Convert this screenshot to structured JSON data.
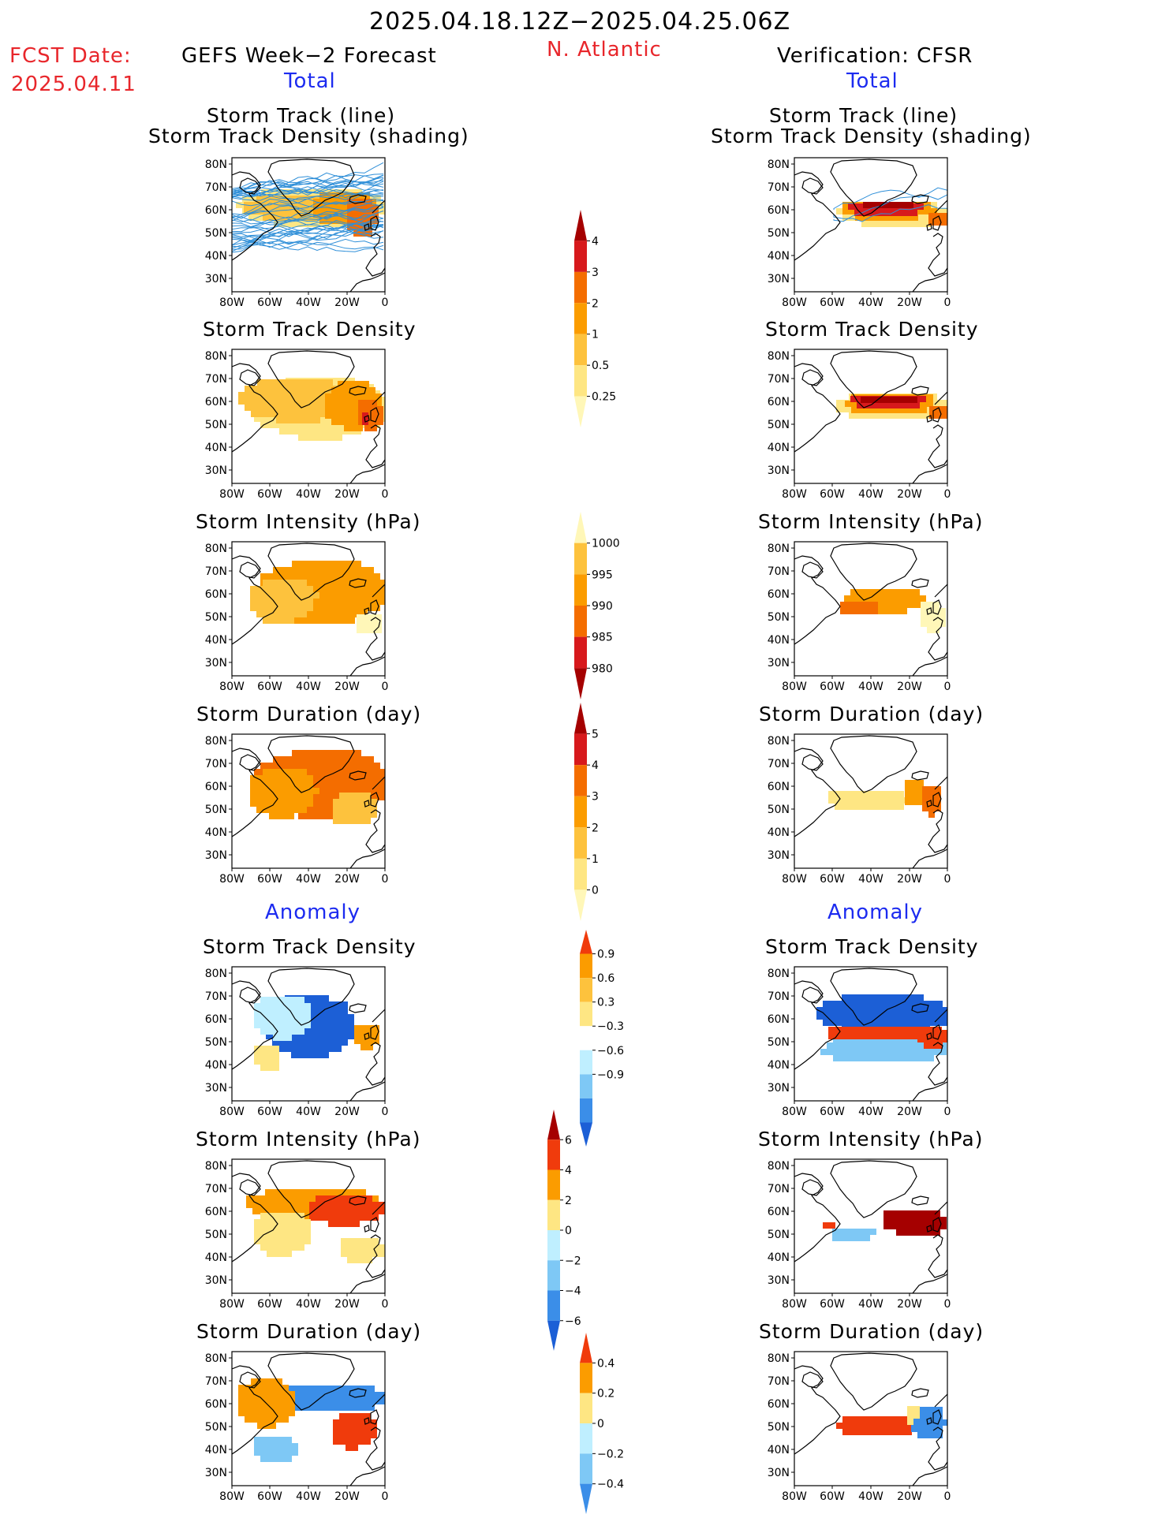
{
  "header": {
    "period": "2025.04.18.12Z−2025.04.25.06Z",
    "fcst_label": "FCST Date:",
    "fcst_date": "2025.04.11",
    "left_title": "GEFS Week−2 Forecast",
    "region": "N. Atlantic",
    "right_title": "Verification: CFSR",
    "left_total": "Total",
    "right_total": "Total",
    "left_anomaly": "Anomaly",
    "right_anomaly": "Anomaly"
  },
  "panel_titles": {
    "track_line": "Storm Track (line)",
    "track_shading": "Storm Track Density (shading)",
    "density": "Storm Track Density",
    "intensity": "Storm Intensity (hPa)",
    "duration": "Storm Duration (day)"
  },
  "axes": {
    "lat_ticks": [
      "80N",
      "70N",
      "60N",
      "50N",
      "40N",
      "30N"
    ],
    "lon_ticks": [
      "80W",
      "60W",
      "40W",
      "20W",
      "0"
    ]
  },
  "colorbars": {
    "density_total": {
      "labels": [
        "4",
        "3",
        "2",
        "1",
        "0.5",
        "0.25"
      ],
      "colors": [
        "#a50000",
        "#d7191c",
        "#f46d00",
        "#fb9c00",
        "#fdc23d",
        "#fee683",
        "#fff7b8"
      ]
    },
    "intensity_total": {
      "labels": [
        "1000",
        "995",
        "990",
        "985",
        "980"
      ],
      "colors": [
        "#fff7b8",
        "#fdc23d",
        "#fb9c00",
        "#f46d00",
        "#d7191c",
        "#a50000"
      ]
    },
    "duration_total": {
      "labels": [
        "5",
        "4",
        "3",
        "2",
        "1",
        "0"
      ],
      "colors": [
        "#a50000",
        "#d7191c",
        "#f46d00",
        "#fb9c00",
        "#fdc23d",
        "#fee683",
        "#fff7b8"
      ]
    },
    "density_anom": {
      "labels": [
        "0.9",
        "0.6",
        "0.3",
        "−0.3",
        "−0.6",
        "−0.9"
      ],
      "colors": [
        "#f03b0c",
        "#fb9c00",
        "#fdc23d",
        "#fee683",
        "#ffffff",
        "#bfefff",
        "#7ec8f5",
        "#3b8ee8",
        "#1c5fd6"
      ]
    },
    "intensity_anom": {
      "labels": [
        "6",
        "4",
        "2",
        "0",
        "−2",
        "−4",
        "−6"
      ],
      "colors": [
        "#a50000",
        "#f03b0c",
        "#fb9c00",
        "#fee683",
        "#bfefff",
        "#7ec8f5",
        "#3b8ee8",
        "#1c5fd6"
      ]
    },
    "duration_anom": {
      "labels": [
        "0.4",
        "0.2",
        "0",
        "−0.2",
        "−0.4"
      ],
      "colors": [
        "#f03b0c",
        "#fb9c00",
        "#fee683",
        "#bfefff",
        "#7ec8f5",
        "#3b8ee8"
      ]
    }
  },
  "chart_data": [
    {
      "type": "heatmap",
      "id": "fcst_track_total",
      "title": "Storm Track (line)",
      "subtitle": "Storm Track Density (shading)",
      "lon_range": [
        -80,
        0
      ],
      "lat_range": [
        25,
        85
      ],
      "field": "density_total",
      "tracks": true
    },
    {
      "type": "heatmap",
      "id": "obs_track_total",
      "title": "Storm Track (line)",
      "subtitle": "Storm Track Density (shading)",
      "lon_range": [
        -80,
        0
      ],
      "lat_range": [
        25,
        85
      ],
      "field": "density_total",
      "tracks": true
    },
    {
      "type": "heatmap",
      "id": "fcst_density_total",
      "title": "Storm Track Density",
      "lon_range": [
        -80,
        0
      ],
      "lat_range": [
        25,
        85
      ],
      "field": "density_total"
    },
    {
      "type": "heatmap",
      "id": "obs_density_total",
      "title": "Storm Track Density",
      "lon_range": [
        -80,
        0
      ],
      "lat_range": [
        25,
        85
      ],
      "field": "density_total"
    },
    {
      "type": "heatmap",
      "id": "fcst_intensity_total",
      "title": "Storm Intensity (hPa)",
      "lon_range": [
        -80,
        0
      ],
      "lat_range": [
        25,
        85
      ],
      "field": "intensity_total"
    },
    {
      "type": "heatmap",
      "id": "obs_intensity_total",
      "title": "Storm Intensity (hPa)",
      "lon_range": [
        -80,
        0
      ],
      "lat_range": [
        25,
        85
      ],
      "field": "intensity_total"
    },
    {
      "type": "heatmap",
      "id": "fcst_duration_total",
      "title": "Storm Duration (day)",
      "lon_range": [
        -80,
        0
      ],
      "lat_range": [
        25,
        85
      ],
      "field": "duration_total"
    },
    {
      "type": "heatmap",
      "id": "obs_duration_total",
      "title": "Storm Duration (day)",
      "lon_range": [
        -80,
        0
      ],
      "lat_range": [
        25,
        85
      ],
      "field": "duration_total"
    },
    {
      "type": "heatmap",
      "id": "fcst_density_anom",
      "title": "Storm Track Density",
      "lon_range": [
        -80,
        0
      ],
      "lat_range": [
        25,
        85
      ],
      "field": "density_anom"
    },
    {
      "type": "heatmap",
      "id": "obs_density_anom",
      "title": "Storm Track Density",
      "lon_range": [
        -80,
        0
      ],
      "lat_range": [
        25,
        85
      ],
      "field": "density_anom"
    },
    {
      "type": "heatmap",
      "id": "fcst_intensity_anom",
      "title": "Storm Intensity (hPa)",
      "lon_range": [
        -80,
        0
      ],
      "lat_range": [
        25,
        85
      ],
      "field": "intensity_anom"
    },
    {
      "type": "heatmap",
      "id": "obs_intensity_anom",
      "title": "Storm Intensity (hPa)",
      "lon_range": [
        -80,
        0
      ],
      "lat_range": [
        25,
        85
      ],
      "field": "intensity_anom"
    },
    {
      "type": "heatmap",
      "id": "fcst_duration_anom",
      "title": "Storm Duration (day)",
      "lon_range": [
        -80,
        0
      ],
      "lat_range": [
        25,
        85
      ],
      "field": "duration_anom"
    },
    {
      "type": "heatmap",
      "id": "obs_duration_anom",
      "title": "Storm Duration (day)",
      "lon_range": [
        -80,
        0
      ],
      "lat_range": [
        25,
        85
      ],
      "field": "duration_anom"
    }
  ]
}
